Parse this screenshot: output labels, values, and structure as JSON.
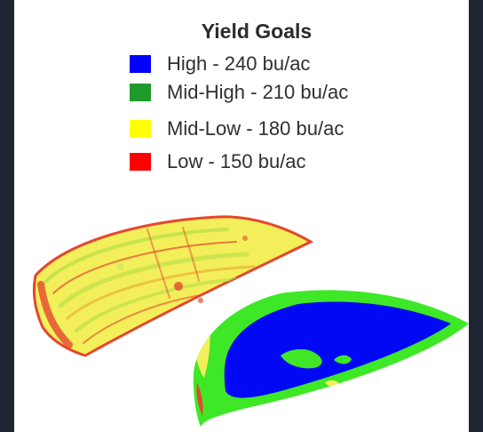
{
  "legend": {
    "title": "Yield Goals",
    "items": [
      {
        "label": "High - 240 bu/ac",
        "color": "#0000ff"
      },
      {
        "label": "Mid-High - 210 bu/ac",
        "color": "#1e9a2a"
      },
      {
        "label": "Mid-Low - 180 bu/ac",
        "color": "#ffff00"
      },
      {
        "label": "Low - 150 bu/ac",
        "color": "#ff0000"
      }
    ]
  },
  "colors": {
    "frame_background": "#1f2433",
    "panel_background": "#ffffff",
    "field_yellow": "#f3ef5a",
    "field_red": "#e4472e",
    "field_green": "#3ee826",
    "field_blue": "#0008f4"
  }
}
